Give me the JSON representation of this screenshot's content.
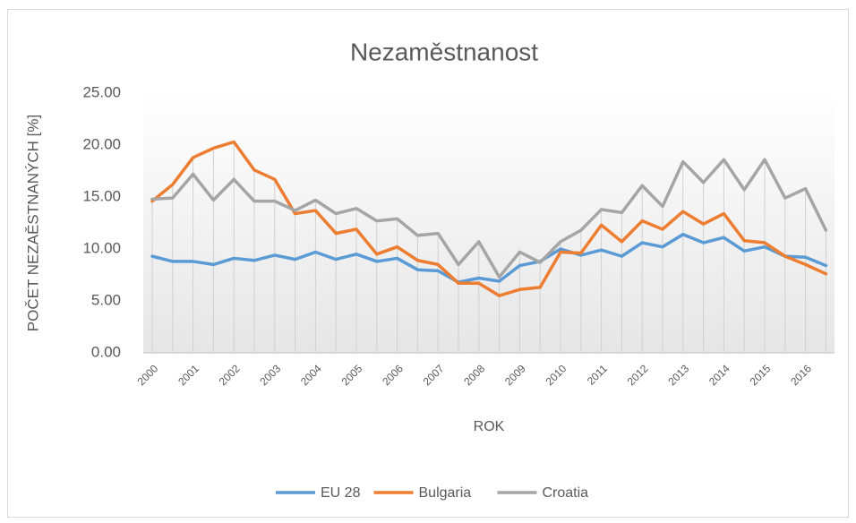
{
  "chart_data": {
    "type": "line",
    "title": "Nezaměstnanost",
    "y_label": "POČET NEZAĚSTNANÝCH [%]",
    "x_label": "ROK",
    "categories": [
      "2000",
      null,
      "2001",
      null,
      "2002",
      null,
      "2003",
      null,
      "2004",
      null,
      "2005",
      null,
      "2006",
      null,
      "2007",
      null,
      "2008",
      null,
      "2009",
      null,
      "2010",
      null,
      "2011",
      null,
      "2012",
      null,
      "2013",
      null,
      "2014",
      null,
      "2015",
      null,
      "2016",
      null
    ],
    "series": [
      {
        "name": "EU 28",
        "color": "#5b9bd5",
        "values": [
          9.3,
          8.8,
          8.8,
          8.5,
          9.1,
          8.9,
          9.4,
          9.0,
          9.7,
          9.0,
          9.5,
          8.8,
          9.1,
          8.0,
          7.9,
          6.8,
          7.2,
          6.9,
          8.4,
          8.8,
          10.0,
          9.4,
          9.9,
          9.3,
          10.6,
          10.2,
          11.4,
          10.6,
          11.1,
          9.8,
          10.2,
          9.3,
          9.2,
          8.4
        ]
      },
      {
        "name": "Bulgaria",
        "color": "#ed7d31",
        "values": [
          14.6,
          16.2,
          18.8,
          19.7,
          20.3,
          17.6,
          16.7,
          13.4,
          13.7,
          11.5,
          11.9,
          9.5,
          10.2,
          8.9,
          8.5,
          6.7,
          6.7,
          5.5,
          6.1,
          6.3,
          9.7,
          9.6,
          12.3,
          10.7,
          12.7,
          11.9,
          13.6,
          12.4,
          13.4,
          10.8,
          10.6,
          9.3,
          8.5,
          7.6
        ]
      },
      {
        "name": "Croatia",
        "color": "#a5a5a5",
        "values": [
          14.8,
          14.9,
          17.2,
          14.7,
          16.7,
          14.6,
          14.6,
          13.7,
          14.7,
          13.4,
          13.9,
          12.7,
          12.9,
          11.3,
          11.5,
          8.5,
          10.7,
          7.3,
          9.7,
          8.7,
          10.7,
          11.8,
          13.8,
          13.5,
          16.1,
          14.1,
          18.4,
          16.4,
          18.6,
          15.7,
          18.6,
          14.9,
          15.8,
          11.8
        ]
      }
    ],
    "ylim": [
      0,
      25
    ],
    "yticks": [
      {
        "value": 0,
        "label": "0.00"
      },
      {
        "value": 5,
        "label": "5.00"
      },
      {
        "value": 10,
        "label": "10.00"
      },
      {
        "value": 15,
        "label": "15.00"
      },
      {
        "value": 20,
        "label": "20.00"
      },
      {
        "value": 25,
        "label": "25.00"
      }
    ],
    "drop_lines": true,
    "legend": "bottom"
  }
}
